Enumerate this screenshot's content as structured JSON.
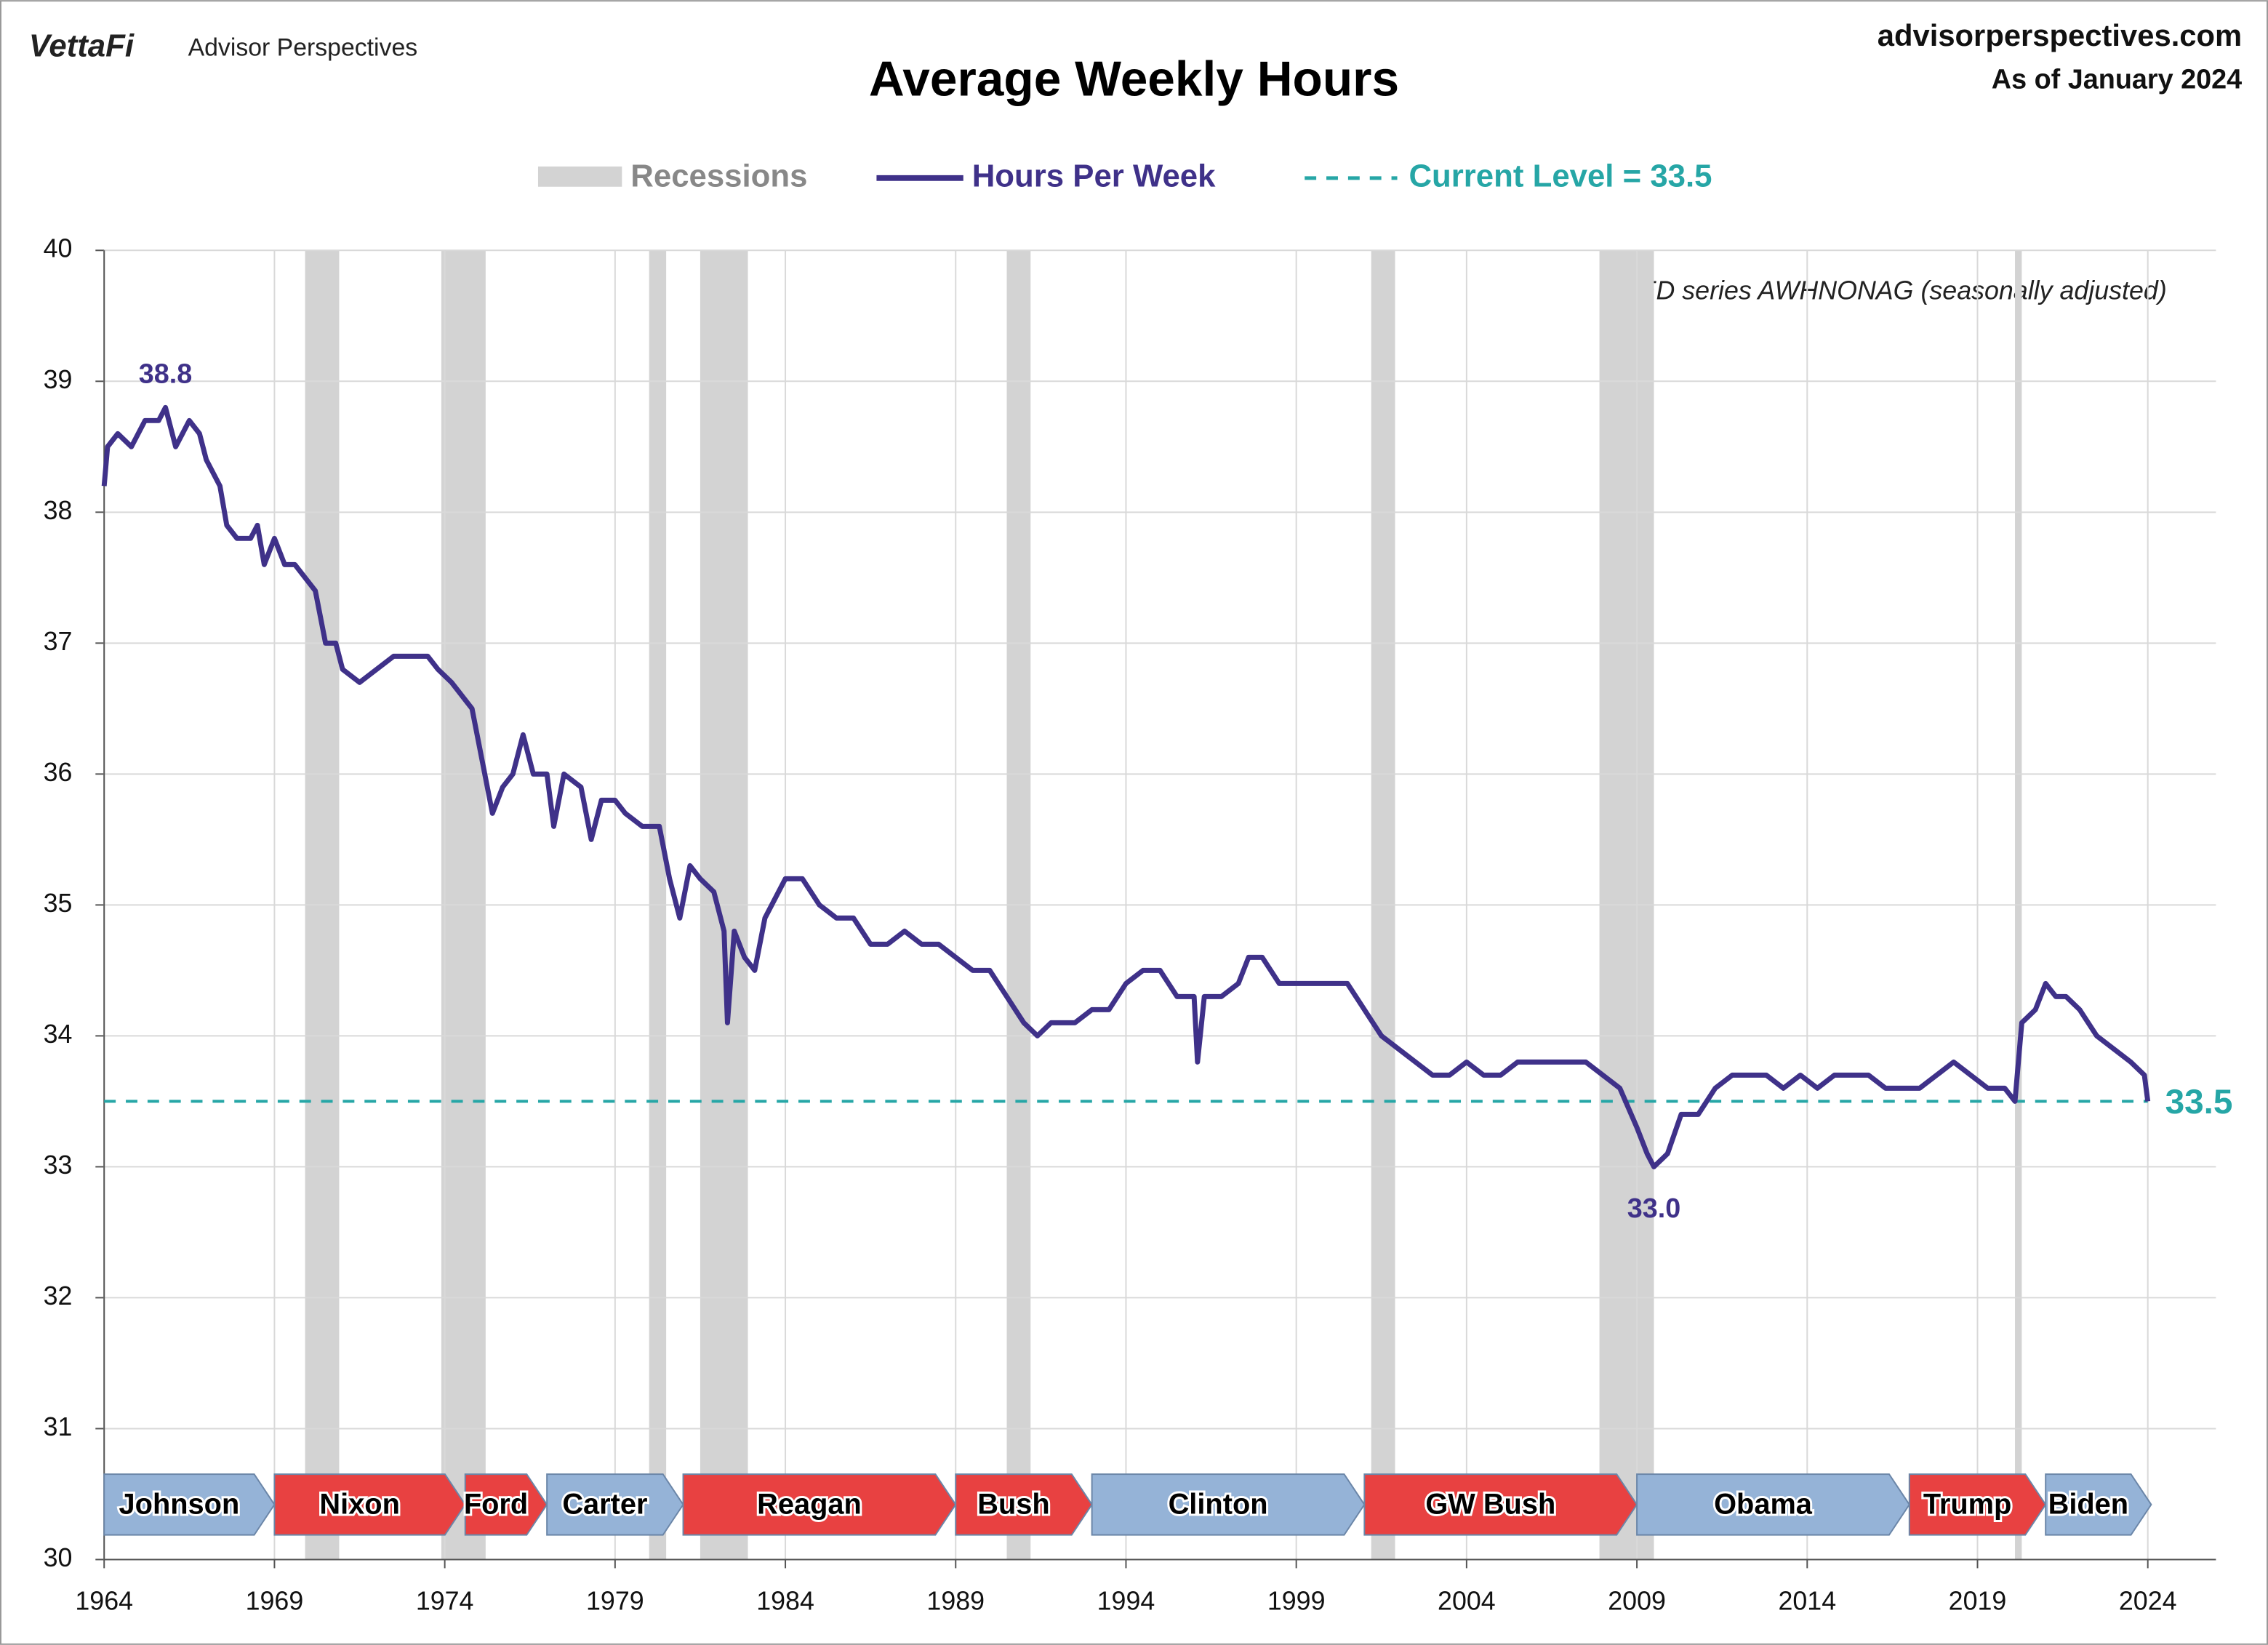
{
  "header": {
    "brand": "VettaFi",
    "brand_sub": "Advisor Perspectives",
    "site": "advisorperspectives.com",
    "as_of": "As of January 2024"
  },
  "chart_data": {
    "type": "line",
    "title": "Average Weekly Hours",
    "note": "FRED series AWHNONAG (seasonally adjusted)",
    "xlim": [
      1964,
      2026
    ],
    "ylim": [
      30,
      40
    ],
    "xticks": [
      1964,
      1969,
      1974,
      1979,
      1984,
      1989,
      1994,
      1999,
      2004,
      2009,
      2014,
      2019,
      2024
    ],
    "yticks": [
      30,
      31,
      32,
      33,
      34,
      35,
      36,
      37,
      38,
      39,
      40
    ],
    "grid": true,
    "recessions": {
      "name": "Recessions",
      "color": "#d3d3d3",
      "ranges": [
        [
          1969.9,
          1970.9
        ],
        [
          1973.9,
          1975.2
        ],
        [
          1980.0,
          1980.5
        ],
        [
          1981.5,
          1982.9
        ],
        [
          1990.5,
          1991.2
        ],
        [
          2001.2,
          2001.9
        ],
        [
          2007.9,
          2009.5
        ],
        [
          2020.1,
          2020.3
        ]
      ]
    },
    "series": [
      {
        "name": "Hours Per Week",
        "color": "#3f3189",
        "x": [
          1964.0,
          1964.1,
          1964.4,
          1964.8,
          1965.2,
          1965.6,
          1965.8,
          1966.1,
          1966.5,
          1966.8,
          1967.0,
          1967.4,
          1967.6,
          1967.9,
          1968.3,
          1968.5,
          1968.7,
          1969.0,
          1969.3,
          1969.6,
          1969.9,
          1970.2,
          1970.5,
          1970.8,
          1971.0,
          1971.5,
          1972.0,
          1972.5,
          1973.0,
          1973.5,
          1973.8,
          1974.2,
          1974.5,
          1974.8,
          1975.1,
          1975.4,
          1975.7,
          1976.0,
          1976.3,
          1976.6,
          1977.0,
          1977.2,
          1977.5,
          1978.0,
          1978.3,
          1978.6,
          1979.0,
          1979.3,
          1979.8,
          1980.3,
          1980.6,
          1980.9,
          1981.2,
          1981.5,
          1981.9,
          1982.2,
          1982.3,
          1982.5,
          1982.8,
          1983.1,
          1983.4,
          1983.8,
          1984.0,
          1984.5,
          1985.0,
          1985.5,
          1986.0,
          1986.5,
          1987.0,
          1987.5,
          1988.0,
          1988.5,
          1989.0,
          1989.5,
          1990.0,
          1990.5,
          1991.0,
          1991.4,
          1991.8,
          1992.5,
          1993.0,
          1993.5,
          1994.0,
          1994.5,
          1995.0,
          1995.5,
          1996.0,
          1996.1,
          1996.3,
          1996.8,
          1997.3,
          1997.6,
          1998.0,
          1998.5,
          1999.0,
          1999.5,
          2000.0,
          2000.5,
          2001.0,
          2001.5,
          2002.0,
          2002.5,
          2003.0,
          2003.5,
          2004.0,
          2004.5,
          2005.0,
          2005.5,
          2006.0,
          2006.5,
          2007.0,
          2007.5,
          2008.0,
          2008.5,
          2009.0,
          2009.3,
          2009.5,
          2009.9,
          2010.3,
          2010.8,
          2011.3,
          2011.8,
          2012.3,
          2012.8,
          2013.3,
          2013.8,
          2014.3,
          2014.8,
          2015.3,
          2015.8,
          2016.3,
          2016.8,
          2017.3,
          2017.8,
          2018.3,
          2018.8,
          2019.3,
          2019.8,
          2020.1,
          2020.3,
          2020.7,
          2021.0,
          2021.3,
          2021.6,
          2022.0,
          2022.5,
          2023.0,
          2023.5,
          2023.9,
          2024.0
        ],
        "values": [
          38.2,
          38.5,
          38.6,
          38.5,
          38.7,
          38.7,
          38.8,
          38.5,
          38.7,
          38.6,
          38.4,
          38.2,
          37.9,
          37.8,
          37.8,
          37.9,
          37.6,
          37.8,
          37.6,
          37.6,
          37.5,
          37.4,
          37.0,
          37.0,
          36.8,
          36.7,
          36.8,
          36.9,
          36.9,
          36.9,
          36.8,
          36.7,
          36.6,
          36.5,
          36.1,
          35.7,
          35.9,
          36.0,
          36.3,
          36.0,
          36.0,
          35.6,
          36.0,
          35.9,
          35.5,
          35.8,
          35.8,
          35.7,
          35.6,
          35.6,
          35.2,
          34.9,
          35.3,
          35.2,
          35.1,
          34.8,
          34.1,
          34.8,
          34.6,
          34.5,
          34.9,
          35.1,
          35.2,
          35.2,
          35.0,
          34.9,
          34.9,
          34.7,
          34.7,
          34.8,
          34.7,
          34.7,
          34.6,
          34.5,
          34.5,
          34.3,
          34.1,
          34.0,
          34.1,
          34.1,
          34.2,
          34.2,
          34.4,
          34.5,
          34.5,
          34.3,
          34.3,
          33.8,
          34.3,
          34.3,
          34.4,
          34.6,
          34.6,
          34.4,
          34.4,
          34.4,
          34.4,
          34.4,
          34.2,
          34.0,
          33.9,
          33.8,
          33.7,
          33.7,
          33.8,
          33.7,
          33.7,
          33.8,
          33.8,
          33.8,
          33.8,
          33.8,
          33.7,
          33.6,
          33.3,
          33.1,
          33.0,
          33.1,
          33.4,
          33.4,
          33.6,
          33.7,
          33.7,
          33.7,
          33.6,
          33.7,
          33.6,
          33.7,
          33.7,
          33.7,
          33.6,
          33.6,
          33.6,
          33.7,
          33.8,
          33.7,
          33.6,
          33.6,
          33.5,
          34.1,
          34.2,
          34.4,
          34.3,
          34.3,
          34.2,
          34.0,
          33.9,
          33.8,
          33.7,
          33.5
        ]
      }
    ],
    "reference_line": {
      "name": "Current Level = 33.5",
      "value": 33.5,
      "color": "#26a6a6"
    },
    "annotations": [
      {
        "x": 1965.8,
        "value": 38.8,
        "label": "38.8"
      },
      {
        "x": 2009.5,
        "value": 33.0,
        "label": "33.0"
      }
    ],
    "presidents": [
      {
        "name": "Johnson",
        "start": 1964,
        "end": 1969,
        "color": "#95b3d7"
      },
      {
        "name": "Nixon",
        "start": 1969,
        "end": 1974.6,
        "color": "#e84141"
      },
      {
        "name": "Ford",
        "start": 1974.6,
        "end": 1977,
        "color": "#e84141"
      },
      {
        "name": "Carter",
        "start": 1977,
        "end": 1981,
        "color": "#95b3d7"
      },
      {
        "name": "Reagan",
        "start": 1981,
        "end": 1989,
        "color": "#e84141"
      },
      {
        "name": "Bush",
        "start": 1989,
        "end": 1993,
        "color": "#e84141"
      },
      {
        "name": "Clinton",
        "start": 1993,
        "end": 2001,
        "color": "#95b3d7"
      },
      {
        "name": "GW Bush",
        "start": 2001,
        "end": 2009,
        "color": "#e84141"
      },
      {
        "name": "Obama",
        "start": 2009,
        "end": 2017,
        "color": "#95b3d7"
      },
      {
        "name": "Trump",
        "start": 2017,
        "end": 2021,
        "color": "#e84141"
      },
      {
        "name": "Biden",
        "start": 2021,
        "end": 2024.1,
        "color": "#95b3d7"
      }
    ]
  }
}
